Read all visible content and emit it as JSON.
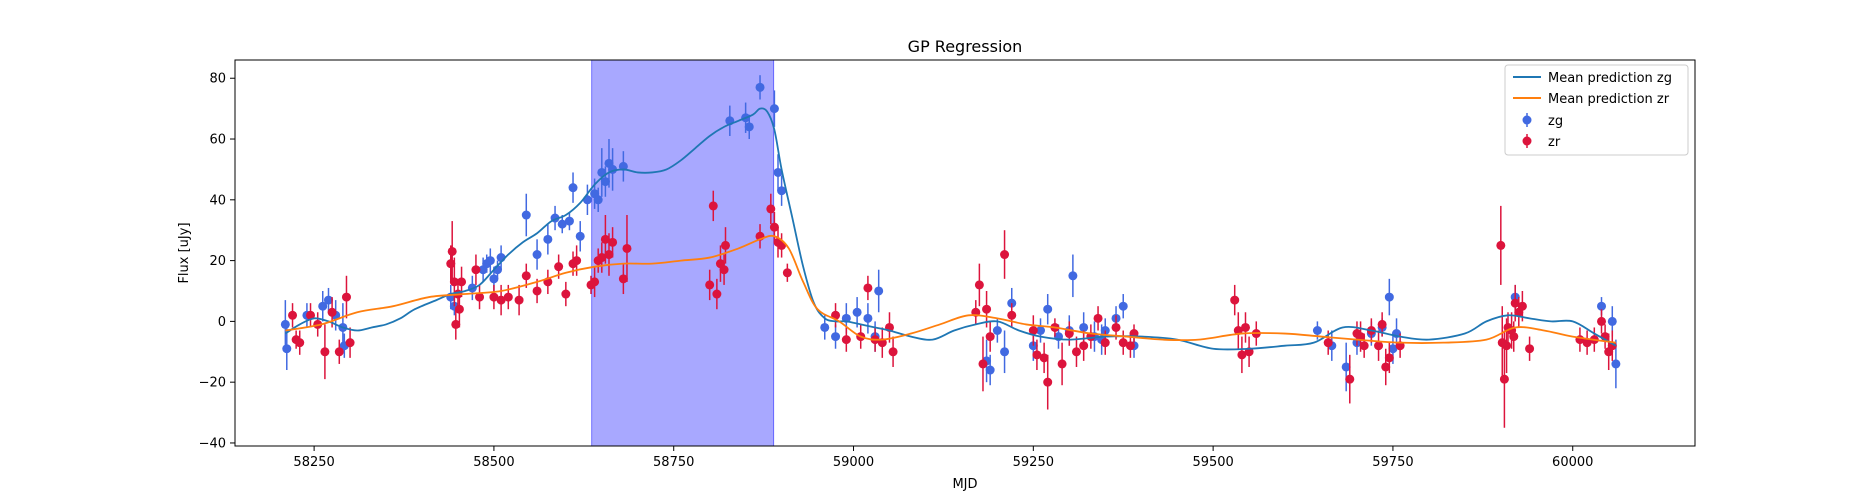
{
  "chart_data": {
    "type": "scatter",
    "title": "GP Regression",
    "xlabel": "MJD",
    "ylabel": "Flux [uJy]",
    "xlim": [
      58140,
      60170
    ],
    "ylim": [
      -41,
      86
    ],
    "x_ticks": [
      58250,
      58500,
      58750,
      59000,
      59250,
      59500,
      59750,
      60000
    ],
    "y_ticks": [
      -40,
      -20,
      0,
      20,
      40,
      60,
      80
    ],
    "grid": false,
    "legend_placement": "top-right",
    "highlight_span": {
      "x": [
        58636,
        58889
      ],
      "color": "#a8a8ff"
    },
    "series": [
      {
        "name": "Mean prediction zg",
        "kind": "line",
        "color": "#1f77b4",
        "x": [
          58210,
          58230,
          58250,
          58270,
          58290,
          58310,
          58330,
          58350,
          58370,
          58390,
          58420,
          58440,
          58460,
          58480,
          58500,
          58520,
          58540,
          58560,
          58580,
          58600,
          58620,
          58640,
          58660,
          58680,
          58700,
          58720,
          58740,
          58760,
          58780,
          58800,
          58820,
          58840,
          58860,
          58870,
          58880,
          58890,
          58900,
          58915,
          58930,
          58945,
          58960,
          58975,
          58990,
          59010,
          59030,
          59050,
          59080,
          59110,
          59140,
          59170,
          59200,
          59230,
          59260,
          59300,
          59350,
          59400,
          59450,
          59500,
          59550,
          59600,
          59640,
          59680,
          59720,
          59760,
          59800,
          59850,
          59880,
          59910,
          59940,
          59970,
          60000,
          60030,
          60060
        ],
        "y": [
          -4,
          -1,
          1,
          0,
          -2,
          -3,
          -2,
          -1,
          1,
          4,
          7,
          9,
          10,
          12,
          17,
          22,
          26,
          29,
          33,
          35,
          39,
          45,
          49,
          50,
          49,
          49,
          50,
          53,
          57,
          61,
          64,
          66,
          68,
          70,
          69,
          63,
          50,
          34,
          18,
          6,
          1,
          0,
          0,
          -1,
          -2,
          -3,
          -5,
          -6,
          -3,
          -1,
          0,
          -3,
          -5,
          -6,
          -5,
          -5,
          -6,
          -9,
          -9,
          -8,
          -7,
          -2,
          -3,
          -5,
          -6,
          -4,
          0,
          2,
          1,
          0,
          0,
          -4,
          -8
        ]
      },
      {
        "name": "Mean prediction zr",
        "kind": "line",
        "color": "#ff7f0e",
        "x": [
          58210,
          58260,
          58310,
          58360,
          58410,
          58460,
          58510,
          58560,
          58600,
          58640,
          58680,
          58720,
          58760,
          58800,
          58840,
          58870,
          58890,
          58910,
          58930,
          58950,
          58980,
          59010,
          59040,
          59080,
          59120,
          59160,
          59200,
          59240,
          59280,
          59330,
          59380,
          59430,
          59480,
          59540,
          59600,
          59650,
          59700,
          59760,
          59820,
          59880,
          59920,
          59960,
          60000,
          60060
        ],
        "y": [
          -3,
          -1,
          3,
          5,
          8,
          9,
          10,
          13,
          16,
          18,
          19,
          19,
          20,
          21,
          24,
          27,
          28,
          24,
          13,
          4,
          0,
          -5,
          -6,
          -4,
          -1,
          2,
          1,
          -1,
          -2,
          -4,
          -5,
          -6,
          -6,
          -4,
          -4,
          -5,
          -6,
          -7,
          -7,
          -6,
          -2,
          -3,
          -5,
          -7
        ]
      },
      {
        "name": "zg",
        "kind": "errorbar",
        "color": "#4169e1",
        "points": [
          [
            58210,
            -1,
            8
          ],
          [
            58212,
            -9,
            7
          ],
          [
            58240,
            2,
            4
          ],
          [
            58262,
            5,
            5
          ],
          [
            58270,
            7,
            4
          ],
          [
            58280,
            2,
            5
          ],
          [
            58290,
            -2,
            8
          ],
          [
            58292,
            -8,
            4
          ],
          [
            58440,
            8,
            4
          ],
          [
            58445,
            5,
            3
          ],
          [
            58470,
            11,
            4
          ],
          [
            58485,
            17,
            4
          ],
          [
            58490,
            19,
            3
          ],
          [
            58495,
            20,
            4
          ],
          [
            58500,
            14,
            4
          ],
          [
            58505,
            17,
            3
          ],
          [
            58510,
            21,
            4
          ],
          [
            58545,
            35,
            7
          ],
          [
            58560,
            22,
            5
          ],
          [
            58575,
            27,
            5
          ],
          [
            58585,
            34,
            4
          ],
          [
            58595,
            32,
            3
          ],
          [
            58605,
            33,
            3
          ],
          [
            58610,
            44,
            5
          ],
          [
            58620,
            28,
            5
          ],
          [
            58630,
            40,
            5
          ],
          [
            58640,
            42,
            5
          ],
          [
            58645,
            40,
            4
          ],
          [
            58650,
            49,
            8
          ],
          [
            58655,
            46,
            5
          ],
          [
            58660,
            52,
            8
          ],
          [
            58665,
            50,
            7
          ],
          [
            58680,
            51,
            5
          ],
          [
            58828,
            66,
            5
          ],
          [
            58850,
            67,
            5
          ],
          [
            58855,
            64,
            4
          ],
          [
            58870,
            77,
            4
          ],
          [
            58890,
            70,
            6
          ],
          [
            58895,
            49,
            6
          ],
          [
            58900,
            43,
            5
          ],
          [
            58960,
            -2,
            4
          ],
          [
            58975,
            -5,
            4
          ],
          [
            58990,
            1,
            5
          ],
          [
            59005,
            3,
            5
          ],
          [
            59020,
            1,
            5
          ],
          [
            59035,
            10,
            7
          ],
          [
            59030,
            -5,
            5
          ],
          [
            59185,
            -13,
            7
          ],
          [
            59190,
            -16,
            5
          ],
          [
            59200,
            -3,
            4
          ],
          [
            59210,
            -10,
            7
          ],
          [
            59220,
            6,
            5
          ],
          [
            59250,
            -8,
            5
          ],
          [
            59260,
            -3,
            4
          ],
          [
            59270,
            4,
            5
          ],
          [
            59285,
            -5,
            4
          ],
          [
            59300,
            -3,
            5
          ],
          [
            59305,
            15,
            7
          ],
          [
            59320,
            -2,
            5
          ],
          [
            59335,
            -5,
            5
          ],
          [
            59345,
            -6,
            5
          ],
          [
            59350,
            -3,
            4
          ],
          [
            59365,
            1,
            4
          ],
          [
            59375,
            5,
            4
          ],
          [
            59390,
            -8,
            4
          ],
          [
            59645,
            -3,
            3
          ],
          [
            59665,
            -8,
            5
          ],
          [
            59685,
            -15,
            8
          ],
          [
            59700,
            -7,
            4
          ],
          [
            59720,
            -4,
            4
          ],
          [
            59735,
            -2,
            3
          ],
          [
            59745,
            8,
            6
          ],
          [
            59750,
            -9,
            5
          ],
          [
            59755,
            -4,
            5
          ],
          [
            59920,
            8,
            4
          ],
          [
            60040,
            5,
            3
          ],
          [
            60055,
            0,
            5
          ],
          [
            60060,
            -14,
            8
          ]
        ]
      },
      {
        "name": "zr",
        "kind": "errorbar",
        "color": "#dc143c",
        "points": [
          [
            58220,
            2,
            4
          ],
          [
            58225,
            -6,
            3
          ],
          [
            58230,
            -7,
            4
          ],
          [
            58245,
            2,
            4
          ],
          [
            58255,
            -1,
            4
          ],
          [
            58265,
            -10,
            9
          ],
          [
            58275,
            3,
            5
          ],
          [
            58285,
            -10,
            4
          ],
          [
            58295,
            8,
            7
          ],
          [
            58300,
            -7,
            5
          ],
          [
            58440,
            19,
            6
          ],
          [
            58442,
            23,
            10
          ],
          [
            58445,
            13,
            8
          ],
          [
            58447,
            -1,
            5
          ],
          [
            58450,
            9,
            5
          ],
          [
            58452,
            4,
            6
          ],
          [
            58455,
            13,
            5
          ],
          [
            58475,
            17,
            5
          ],
          [
            58480,
            8,
            4
          ],
          [
            58500,
            8,
            4
          ],
          [
            58510,
            7,
            5
          ],
          [
            58520,
            8,
            4
          ],
          [
            58535,
            7,
            5
          ],
          [
            58545,
            15,
            4
          ],
          [
            58560,
            10,
            4
          ],
          [
            58575,
            13,
            4
          ],
          [
            58590,
            18,
            4
          ],
          [
            58600,
            9,
            4
          ],
          [
            58610,
            19,
            4
          ],
          [
            58615,
            20,
            5
          ],
          [
            58635,
            12,
            3
          ],
          [
            58640,
            13,
            5
          ],
          [
            58645,
            20,
            4
          ],
          [
            58650,
            21,
            5
          ],
          [
            58655,
            27,
            8
          ],
          [
            58660,
            22,
            7
          ],
          [
            58665,
            26,
            5
          ],
          [
            58680,
            14,
            5
          ],
          [
            58685,
            24,
            11
          ],
          [
            58800,
            12,
            5
          ],
          [
            58805,
            38,
            5
          ],
          [
            58810,
            9,
            5
          ],
          [
            58815,
            19,
            6
          ],
          [
            58820,
            17,
            5
          ],
          [
            58822,
            25,
            6
          ],
          [
            58870,
            28,
            4
          ],
          [
            58885,
            37,
            5
          ],
          [
            58890,
            31,
            5
          ],
          [
            58895,
            26,
            5
          ],
          [
            58900,
            25,
            4
          ],
          [
            58908,
            16,
            3
          ],
          [
            58975,
            2,
            4
          ],
          [
            58990,
            -6,
            4
          ],
          [
            59010,
            -5,
            4
          ],
          [
            59020,
            11,
            4
          ],
          [
            59030,
            -6,
            4
          ],
          [
            59040,
            -7,
            5
          ],
          [
            59050,
            -2,
            5
          ],
          [
            59055,
            -10,
            5
          ],
          [
            59170,
            3,
            4
          ],
          [
            59175,
            12,
            7
          ],
          [
            59180,
            -14,
            9
          ],
          [
            59185,
            4,
            6
          ],
          [
            59190,
            -5,
            5
          ],
          [
            59210,
            22,
            8
          ],
          [
            59220,
            2,
            4
          ],
          [
            59250,
            -3,
            5
          ],
          [
            59255,
            -11,
            5
          ],
          [
            59265,
            -12,
            5
          ],
          [
            59270,
            -20,
            9
          ],
          [
            59280,
            -2,
            3
          ],
          [
            59290,
            -14,
            7
          ],
          [
            59300,
            -4,
            4
          ],
          [
            59310,
            -10,
            5
          ],
          [
            59320,
            -8,
            5
          ],
          [
            59330,
            -5,
            4
          ],
          [
            59340,
            1,
            4
          ],
          [
            59350,
            -7,
            4
          ],
          [
            59365,
            -2,
            4
          ],
          [
            59375,
            -7,
            4
          ],
          [
            59385,
            -8,
            4
          ],
          [
            59390,
            -4,
            3
          ],
          [
            59530,
            7,
            5
          ],
          [
            59535,
            -3,
            6
          ],
          [
            59540,
            -11,
            6
          ],
          [
            59545,
            -2,
            5
          ],
          [
            59550,
            -10,
            5
          ],
          [
            59560,
            -4,
            4
          ],
          [
            59660,
            -7,
            4
          ],
          [
            59690,
            -19,
            8
          ],
          [
            59700,
            -4,
            4
          ],
          [
            59705,
            -5,
            5
          ],
          [
            59710,
            -8,
            4
          ],
          [
            59720,
            -3,
            4
          ],
          [
            59730,
            -8,
            5
          ],
          [
            59735,
            -1,
            4
          ],
          [
            59740,
            -15,
            6
          ],
          [
            59745,
            -12,
            5
          ],
          [
            59760,
            -8,
            4
          ],
          [
            59900,
            25,
            13
          ],
          [
            59902,
            -7,
            12
          ],
          [
            59905,
            -19,
            16
          ],
          [
            59908,
            -8,
            9
          ],
          [
            59910,
            -2,
            5
          ],
          [
            59915,
            -3,
            6
          ],
          [
            59918,
            -5,
            5
          ],
          [
            59920,
            6,
            6
          ],
          [
            59925,
            3,
            5
          ],
          [
            59930,
            5,
            5
          ],
          [
            59940,
            -9,
            4
          ],
          [
            60010,
            -6,
            4
          ],
          [
            60020,
            -7,
            4
          ],
          [
            60030,
            -6,
            4
          ],
          [
            60040,
            0,
            4
          ],
          [
            60045,
            -5,
            4
          ],
          [
            60050,
            -10,
            6
          ],
          [
            60055,
            -8,
            5
          ]
        ]
      }
    ]
  }
}
